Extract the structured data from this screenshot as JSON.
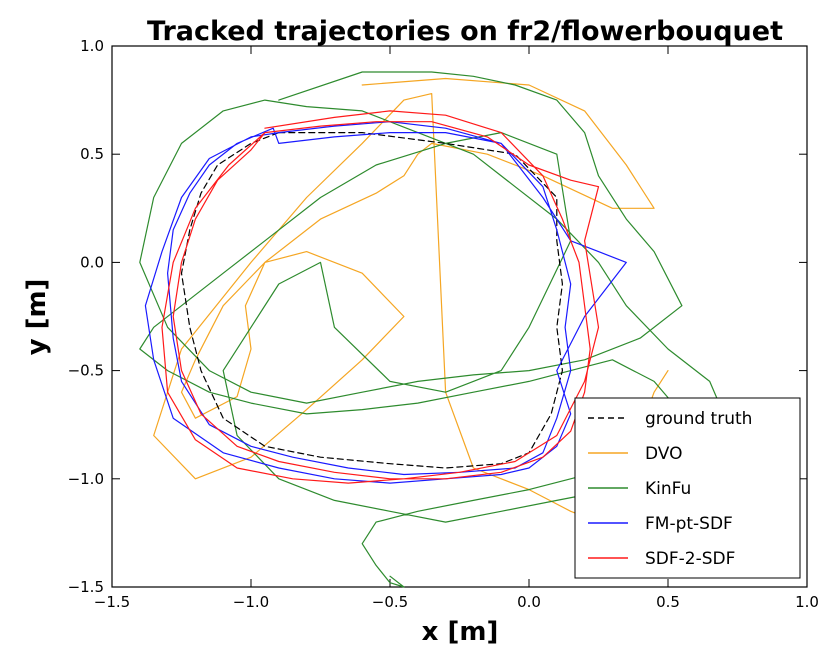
{
  "chart_data": {
    "type": "line",
    "title": "Tracked trajectories on fr2/flowerbouquet",
    "xlabel": "x [m]",
    "ylabel": "y [m]",
    "xlim": [
      -1.5,
      1.0
    ],
    "ylim": [
      -1.5,
      1.0
    ],
    "x_ticks": [
      -1.5,
      -1.0,
      -0.5,
      0.0,
      0.5,
      1.0
    ],
    "y_ticks": [
      -1.5,
      -1.0,
      -0.5,
      0.0,
      0.5,
      1.0
    ],
    "x_tick_labels": [
      "−1.5",
      "−1.0",
      "−0.5",
      "0.0",
      "0.5",
      "1.0"
    ],
    "y_tick_labels": [
      "−1.5",
      "−1.0",
      "−0.5",
      "0.0",
      "0.5",
      "1.0"
    ],
    "grid": false,
    "legend_position": "bottom-right",
    "series": [
      {
        "name": "ground truth",
        "color": "#000000",
        "dash": "dashed",
        "x": [
          -0.9,
          -0.6,
          -0.3,
          -0.05,
          0.1,
          0.1,
          0.12,
          0.1,
          0.12,
          0.08,
          0.0,
          -0.1,
          -0.3,
          -0.5,
          -0.75,
          -0.95,
          -1.1,
          -1.18,
          -1.22,
          -1.25,
          -1.22,
          -1.18,
          -1.12,
          -1.0,
          -0.9
        ],
        "y": [
          0.6,
          0.6,
          0.55,
          0.5,
          0.3,
          0.1,
          -0.1,
          -0.3,
          -0.5,
          -0.7,
          -0.88,
          -0.93,
          -0.95,
          -0.93,
          -0.9,
          -0.85,
          -0.72,
          -0.5,
          -0.3,
          -0.05,
          0.15,
          0.32,
          0.45,
          0.55,
          0.6
        ]
      },
      {
        "name": "DVO",
        "color": "#f5a623",
        "dash": "solid",
        "x": [
          -0.6,
          -0.3,
          0.0,
          0.2,
          0.35,
          0.45,
          0.3,
          0.05,
          -0.15,
          -0.35,
          -0.4,
          -0.45,
          -0.55,
          -0.75,
          -0.95,
          -1.1,
          -1.2,
          -1.25,
          -1.2,
          -1.05,
          -1.0,
          -1.02,
          -0.95,
          -0.8,
          -0.6,
          -0.45,
          -0.6,
          -0.8,
          -1.0,
          -1.2,
          -1.35,
          -1.25,
          -1.0,
          -0.8,
          -0.6,
          -0.45,
          -0.35,
          -0.3,
          -0.2,
          0.0,
          0.15,
          0.25,
          0.35,
          0.45,
          0.5
        ],
        "y": [
          0.82,
          0.85,
          0.82,
          0.7,
          0.45,
          0.25,
          0.25,
          0.4,
          0.5,
          0.55,
          0.5,
          0.4,
          0.32,
          0.2,
          0.0,
          -0.2,
          -0.45,
          -0.6,
          -0.72,
          -0.62,
          -0.4,
          -0.2,
          0.0,
          0.05,
          -0.05,
          -0.25,
          -0.45,
          -0.68,
          -0.9,
          -1.0,
          -0.8,
          -0.4,
          0.0,
          0.3,
          0.55,
          0.75,
          0.78,
          -0.6,
          -0.95,
          -1.05,
          -1.15,
          -1.2,
          -0.95,
          -0.6,
          -0.5
        ]
      },
      {
        "name": "KinFu",
        "color": "#2e8b2e",
        "dash": "solid",
        "x": [
          -0.9,
          -0.6,
          -0.35,
          -0.2,
          -0.05,
          0.1,
          0.2,
          0.25,
          0.35,
          0.45,
          0.55,
          0.4,
          0.2,
          0.0,
          -0.2,
          -0.4,
          -0.6,
          -0.8,
          -1.0,
          -1.15,
          -1.3,
          -1.4,
          -1.35,
          -1.25,
          -1.1,
          -0.95,
          -0.8,
          -0.6,
          -0.4,
          -0.2,
          -0.05,
          0.1,
          0.25,
          0.35,
          0.5,
          0.65,
          0.7,
          0.62,
          0.45,
          0.3,
          0.1,
          -0.1,
          -0.3,
          -0.5,
          -0.7,
          -0.9,
          -1.05,
          -1.1,
          -1.0,
          -0.9,
          -0.75,
          -0.7,
          -0.5,
          -0.3,
          -0.1,
          0.0,
          0.15,
          0.1,
          -0.1,
          -0.3,
          -0.55,
          -0.75,
          -0.95,
          -1.1,
          -1.25,
          -1.35,
          -1.4,
          -1.3,
          -1.15,
          -1.0,
          -0.8,
          -0.6,
          -0.4,
          -0.2,
          0.0,
          0.15,
          0.3,
          0.45,
          0.55,
          0.6,
          0.45,
          0.3,
          0.15,
          0.0,
          -0.2,
          -0.4,
          -0.55,
          -0.6,
          -0.55,
          -0.5,
          -0.45,
          -0.5
        ],
        "y": [
          0.75,
          0.88,
          0.88,
          0.86,
          0.82,
          0.75,
          0.6,
          0.4,
          0.2,
          0.05,
          -0.2,
          -0.35,
          -0.45,
          -0.5,
          -0.52,
          -0.55,
          -0.6,
          -0.65,
          -0.6,
          -0.5,
          -0.3,
          0.0,
          0.3,
          0.55,
          0.7,
          0.75,
          0.72,
          0.7,
          0.6,
          0.5,
          0.35,
          0.2,
          0.0,
          -0.2,
          -0.4,
          -0.55,
          -0.7,
          -0.85,
          -0.95,
          -1.05,
          -1.1,
          -1.15,
          -1.2,
          -1.15,
          -1.1,
          -1.0,
          -0.8,
          -0.5,
          -0.3,
          -0.1,
          0.0,
          -0.3,
          -0.55,
          -0.6,
          -0.5,
          -0.3,
          0.1,
          0.5,
          0.6,
          0.55,
          0.45,
          0.3,
          0.1,
          -0.05,
          -0.2,
          -0.3,
          -0.4,
          -0.5,
          -0.6,
          -0.65,
          -0.7,
          -0.68,
          -0.65,
          -0.6,
          -0.55,
          -0.5,
          -0.45,
          -0.55,
          -0.7,
          -0.85,
          -0.9,
          -0.95,
          -1.0,
          -1.05,
          -1.1,
          -1.15,
          -1.2,
          -1.3,
          -1.4,
          -1.48,
          -1.5,
          -1.45
        ]
      },
      {
        "name": "FM-pt-SDF",
        "color": "#1a1aff",
        "dash": "solid",
        "x": [
          -0.9,
          -0.7,
          -0.5,
          -0.3,
          -0.1,
          0.05,
          0.1,
          0.15,
          0.13,
          0.15,
          0.1,
          0.05,
          -0.05,
          -0.25,
          -0.45,
          -0.65,
          -0.85,
          -1.0,
          -1.15,
          -1.25,
          -1.28,
          -1.3,
          -1.28,
          -1.22,
          -1.15,
          -1.05,
          -0.92,
          -0.9,
          -0.7,
          -0.5,
          -0.3,
          -0.1,
          0.05,
          0.15,
          0.25,
          0.35,
          0.2,
          0.1,
          0.15,
          0.1,
          0.0,
          -0.1,
          -0.3,
          -0.5,
          -0.7,
          -0.9,
          -1.1,
          -1.28,
          -1.35,
          -1.38,
          -1.32,
          -1.25,
          -1.15,
          -1.0,
          -0.9
        ],
        "y": [
          0.6,
          0.63,
          0.65,
          0.62,
          0.55,
          0.35,
          0.15,
          -0.1,
          -0.3,
          -0.5,
          -0.72,
          -0.88,
          -0.95,
          -0.97,
          -0.98,
          -0.95,
          -0.9,
          -0.85,
          -0.75,
          -0.55,
          -0.35,
          -0.05,
          0.15,
          0.32,
          0.45,
          0.55,
          0.62,
          0.55,
          0.58,
          0.6,
          0.6,
          0.55,
          0.3,
          0.1,
          0.05,
          0.0,
          -0.25,
          -0.5,
          -0.7,
          -0.85,
          -0.95,
          -0.98,
          -1.0,
          -1.02,
          -1.0,
          -0.95,
          -0.88,
          -0.72,
          -0.45,
          -0.2,
          0.05,
          0.3,
          0.48,
          0.58,
          0.6
        ]
      },
      {
        "name": "SDF-2-SDF",
        "color": "#ff1a1a",
        "dash": "solid",
        "x": [
          -0.95,
          -0.7,
          -0.5,
          -0.3,
          -0.1,
          0.05,
          0.12,
          0.18,
          0.2,
          0.22,
          0.2,
          0.15,
          0.05,
          -0.1,
          -0.3,
          -0.5,
          -0.7,
          -0.9,
          -1.05,
          -1.18,
          -1.25,
          -1.28,
          -1.25,
          -1.2,
          -1.12,
          -1.0,
          -0.95,
          -0.75,
          -0.55,
          -0.35,
          -0.15,
          0.0,
          0.15,
          0.25,
          0.2,
          0.25,
          0.2,
          0.1,
          -0.05,
          -0.25,
          -0.45,
          -0.65,
          -0.85,
          -1.05,
          -1.2,
          -1.3,
          -1.32,
          -1.28,
          -1.2,
          -1.08,
          -0.95
        ],
        "y": [
          0.62,
          0.67,
          0.7,
          0.68,
          0.6,
          0.4,
          0.2,
          0.0,
          -0.2,
          -0.4,
          -0.6,
          -0.78,
          -0.9,
          -0.97,
          -1.0,
          -1.0,
          -0.97,
          -0.92,
          -0.85,
          -0.7,
          -0.5,
          -0.25,
          0.0,
          0.2,
          0.38,
          0.52,
          0.6,
          0.63,
          0.65,
          0.65,
          0.58,
          0.45,
          0.38,
          0.35,
          0.1,
          -0.3,
          -0.55,
          -0.8,
          -0.92,
          -0.97,
          -1.0,
          -1.02,
          -1.0,
          -0.95,
          -0.82,
          -0.6,
          -0.3,
          0.0,
          0.25,
          0.45,
          0.6
        ]
      }
    ]
  }
}
